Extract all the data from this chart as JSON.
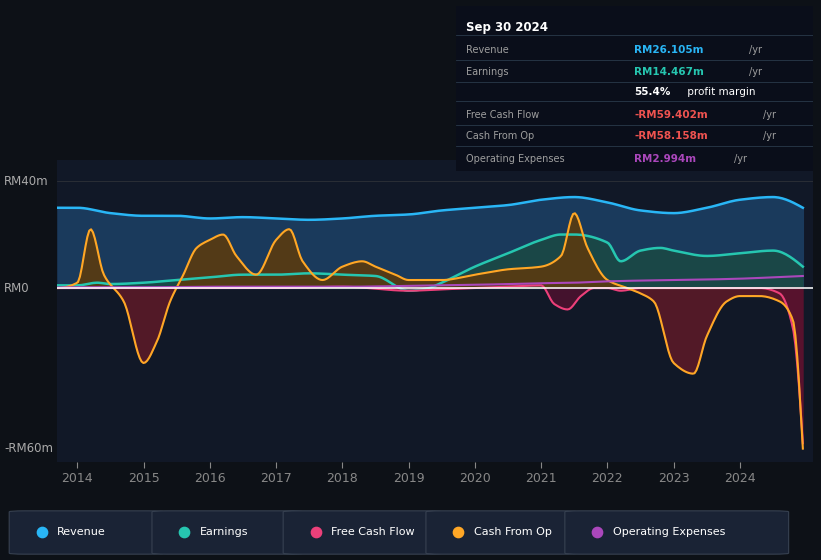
{
  "background_color": "#0d1117",
  "plot_bg_color": "#111827",
  "ylabel_top": "RM40m",
  "ylabel_bottom": "-RM60m",
  "ylabel_mid": "RM0",
  "x_labels": [
    "2014",
    "2015",
    "2016",
    "2017",
    "2018",
    "2019",
    "2020",
    "2021",
    "2022",
    "2023",
    "2024"
  ],
  "info_box": {
    "date": "Sep 30 2024",
    "revenue_label": "Revenue",
    "revenue_value": "RM26.105m",
    "revenue_suffix": "/yr",
    "earnings_label": "Earnings",
    "earnings_value": "RM14.467m",
    "earnings_suffix": "/yr",
    "profit_margin": "55.4%",
    "profit_margin_label": " profit margin",
    "fcf_label": "Free Cash Flow",
    "fcf_value": "-RM59.402m",
    "fcf_suffix": "/yr",
    "cfop_label": "Cash From Op",
    "cfop_value": "-RM58.158m",
    "cfop_suffix": "/yr",
    "opex_label": "Operating Expenses",
    "opex_value": "RM2.994m",
    "opex_suffix": "/yr"
  },
  "colors": {
    "revenue": "#29b6f6",
    "earnings": "#26c6b0",
    "free_cash_flow": "#ec407a",
    "cash_from_op": "#ffa726",
    "operating_expenses": "#ab47bc",
    "revenue_fill": "#1a3a5c",
    "earnings_fill": "#1a4a44",
    "cash_from_op_fill_pos": "#5a3a10",
    "cash_from_op_fill_neg": "#5a1a28",
    "text_dim": "#9e9e9e",
    "text_bright": "#ffffff",
    "box_bg": "#0a0e1a",
    "box_border": "#2a3a4a"
  },
  "legend": [
    {
      "label": "Revenue",
      "color": "#29b6f6"
    },
    {
      "label": "Earnings",
      "color": "#26c6b0"
    },
    {
      "label": "Free Cash Flow",
      "color": "#ec407a"
    },
    {
      "label": "Cash From Op",
      "color": "#ffa726"
    },
    {
      "label": "Operating Expenses",
      "color": "#ab47bc"
    }
  ]
}
